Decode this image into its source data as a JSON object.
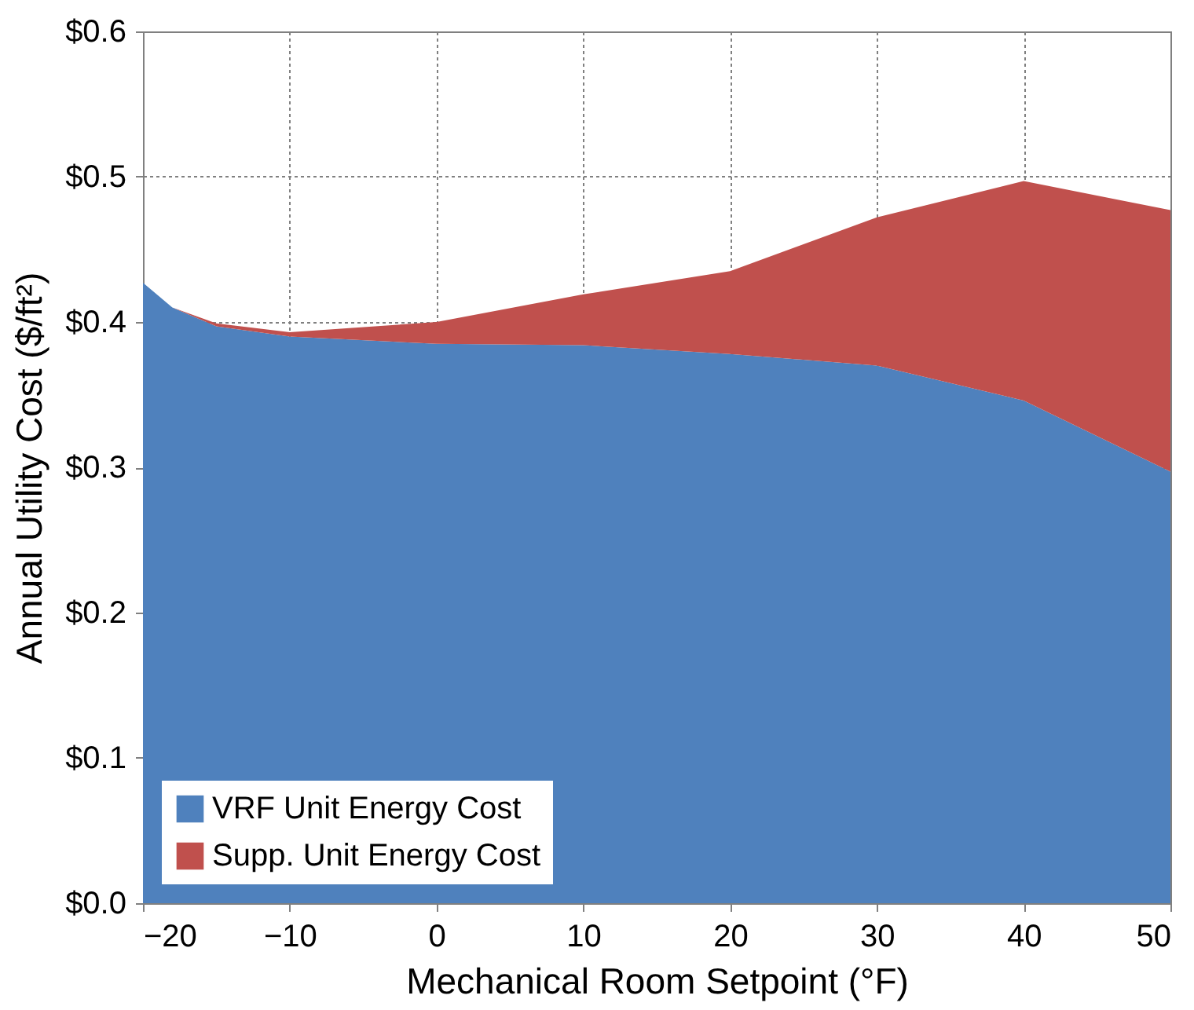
{
  "chart_data": {
    "type": "area",
    "stacked": true,
    "xlabel": "Mechanical Room Setpoint (°F)",
    "ylabel": "Annual Utility Cost ($/ft²)",
    "x": [
      -20,
      -18,
      -15,
      -10,
      0,
      10,
      20,
      30,
      40,
      50
    ],
    "series": [
      {
        "name": "VRF Unit Energy Cost",
        "color": "#4f81bd",
        "values": [
          0.427,
          0.41,
          0.397,
          0.39,
          0.385,
          0.384,
          0.378,
          0.37,
          0.346,
          0.297
        ]
      },
      {
        "name": "Supp. Unit Energy Cost",
        "color": "#c0504d",
        "values": [
          0,
          0,
          0.002,
          0.003,
          0.015,
          0.035,
          0.057,
          0.102,
          0.151,
          0.18
        ]
      }
    ],
    "xlim": [
      -20,
      50
    ],
    "xticks": [
      -20,
      -10,
      0,
      10,
      20,
      30,
      40,
      50
    ],
    "ylim": [
      0,
      0.6
    ],
    "yticks": [
      {
        "value": 0,
        "label": "$0.0"
      },
      {
        "value": 0.1,
        "label": "$0.1"
      },
      {
        "value": 0.2,
        "label": "$0.2"
      },
      {
        "value": 0.3,
        "label": "$0.3"
      },
      {
        "value": 0.4,
        "label": "$0.4"
      },
      {
        "value": 0.5,
        "label": "$0.5"
      },
      {
        "value": 0.6,
        "label": "$0.6"
      }
    ],
    "grid": true,
    "legend": "bottom left"
  }
}
